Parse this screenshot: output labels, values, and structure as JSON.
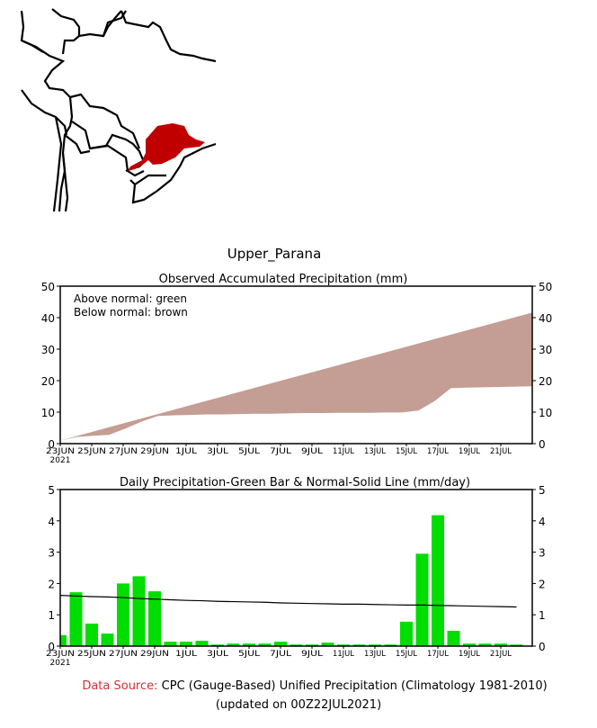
{
  "title": "Upper_Parana",
  "map": {
    "region_color": "#c00000"
  },
  "footer": {
    "source_label": "Data Source:",
    "source_text": "CPC (Gauge-Based) Unified Precipitation (Climatology 1981-2010)",
    "updated": "(updated on 00Z22JUL2021)"
  },
  "chart_data": [
    {
      "type": "area",
      "title": "Observed Accumulated Precipitation (mm)",
      "legend": [
        "Above normal: green",
        "Below normal: brown"
      ],
      "legend_position": "top-left",
      "ylim": [
        0,
        50
      ],
      "yticks": [
        "0",
        "10",
        "20",
        "30",
        "40",
        "50"
      ],
      "xtick_labels": [
        "23JUN",
        "25JUN",
        "27JUN",
        "29JUN",
        "1JUL",
        "3JUL",
        "5JUL",
        "7JUL",
        "9JUL",
        "11JUL",
        "13JUL",
        "15JUL",
        "17JUL",
        "19JUL",
        "21JUL"
      ],
      "year_label": "2021",
      "colors": {
        "below": "#c49d94",
        "above": "#00cc00"
      },
      "observed_accum": [
        1.0,
        2.1,
        2.5,
        2.8,
        4.8,
        7.0,
        8.8,
        9.0,
        9.1,
        9.3,
        9.3,
        9.4,
        9.5,
        9.5,
        9.6,
        9.7,
        9.7,
        9.8,
        9.8,
        9.8,
        9.9,
        9.9,
        10.5,
        13.5,
        17.6,
        17.8,
        17.9,
        18.0,
        18.1,
        18.2
      ],
      "normal_accum": [
        1.0,
        2.4,
        3.8,
        5.2,
        6.6,
        8.0,
        9.4,
        10.8,
        12.2,
        13.6,
        15.0,
        16.4,
        17.8,
        19.2,
        20.6,
        22.0,
        23.4,
        24.8,
        26.2,
        27.6,
        29.0,
        30.4,
        31.8,
        33.2,
        34.6,
        36.0,
        37.4,
        38.8,
        40.2,
        41.6
      ]
    },
    {
      "type": "bar",
      "title": "Daily Precipitation-Green Bar & Normal-Solid Line (mm/day)",
      "ylim": [
        0,
        5
      ],
      "yticks": [
        "0",
        "1",
        "2",
        "3",
        "4",
        "5"
      ],
      "xtick_labels": [
        "23JUN",
        "25JUN",
        "27JUN",
        "29JUN",
        "1JUL",
        "3JUL",
        "5JUL",
        "7JUL",
        "9JUL",
        "11JUL",
        "13JUL",
        "15JUL",
        "17JUL",
        "19JUL",
        "21JUL"
      ],
      "year_label": "2021",
      "colors": {
        "bar": "#00dd00",
        "line": "#000000"
      },
      "daily": [
        0.35,
        1.72,
        0.72,
        0.4,
        2.0,
        2.23,
        1.75,
        0.14,
        0.14,
        0.17,
        0.05,
        0.08,
        0.08,
        0.08,
        0.14,
        0.05,
        0.05,
        0.11,
        0.05,
        0.05,
        0.05,
        0.05,
        0.78,
        2.95,
        4.18,
        0.49,
        0.08,
        0.08,
        0.08,
        0.05
      ],
      "normal": [
        1.62,
        1.6,
        1.58,
        1.57,
        1.55,
        1.52,
        1.5,
        1.48,
        1.46,
        1.45,
        1.43,
        1.42,
        1.41,
        1.4,
        1.38,
        1.37,
        1.36,
        1.35,
        1.34,
        1.34,
        1.33,
        1.32,
        1.31,
        1.31,
        1.3,
        1.29,
        1.28,
        1.27,
        1.26,
        1.25
      ]
    }
  ]
}
